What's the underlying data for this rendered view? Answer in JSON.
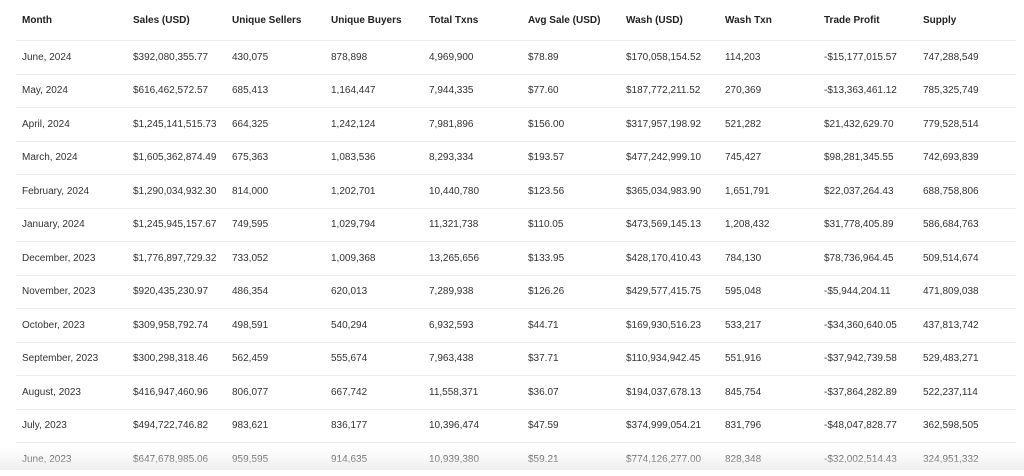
{
  "table": {
    "columns": [
      "Month",
      "Sales (USD)",
      "Unique Sellers",
      "Unique Buyers",
      "Total Txns",
      "Avg Sale (USD)",
      "Wash (USD)",
      "Wash Txn",
      "Trade Profit",
      "Supply"
    ],
    "rows": [
      [
        "June, 2024",
        "$392,080,355.77",
        "430,075",
        "878,898",
        "4,969,900",
        "$78.89",
        "$170,058,154.52",
        "114,203",
        "-$15,177,015.57",
        "747,288,549"
      ],
      [
        "May, 2024",
        "$616,462,572.57",
        "685,413",
        "1,164,447",
        "7,944,335",
        "$77.60",
        "$187,772,211.52",
        "270,369",
        "-$13,363,461.12",
        "785,325,749"
      ],
      [
        "April, 2024",
        "$1,245,141,515.73",
        "664,325",
        "1,242,124",
        "7,981,896",
        "$156.00",
        "$317,957,198.92",
        "521,282",
        "$21,432,629.70",
        "779,528,514"
      ],
      [
        "March, 2024",
        "$1,605,362,874.49",
        "675,363",
        "1,083,536",
        "8,293,334",
        "$193.57",
        "$477,242,999.10",
        "745,427",
        "$98,281,345.55",
        "742,693,839"
      ],
      [
        "February, 2024",
        "$1,290,034,932.30",
        "814,000",
        "1,202,701",
        "10,440,780",
        "$123.56",
        "$365,034,983.90",
        "1,651,791",
        "$22,037,264.43",
        "688,758,806"
      ],
      [
        "January, 2024",
        "$1,245,945,157.67",
        "749,595",
        "1,029,794",
        "11,321,738",
        "$110.05",
        "$473,569,145.13",
        "1,208,432",
        "$31,778,405.89",
        "586,684,763"
      ],
      [
        "December, 2023",
        "$1,776,897,729.32",
        "733,052",
        "1,009,368",
        "13,265,656",
        "$133.95",
        "$428,170,410.43",
        "784,130",
        "$78,736,964.45",
        "509,514,674"
      ],
      [
        "November, 2023",
        "$920,435,230.97",
        "486,354",
        "620,013",
        "7,289,938",
        "$126.26",
        "$429,577,415.75",
        "595,048",
        "-$5,944,204.11",
        "471,809,038"
      ],
      [
        "October, 2023",
        "$309,958,792.74",
        "498,591",
        "540,294",
        "6,932,593",
        "$44.71",
        "$169,930,516.23",
        "533,217",
        "-$34,360,640.05",
        "437,813,742"
      ],
      [
        "September, 2023",
        "$300,298,318.46",
        "562,459",
        "555,674",
        "7,963,438",
        "$37.71",
        "$110,934,942.45",
        "551,916",
        "-$37,942,739.58",
        "529,483,271"
      ],
      [
        "August, 2023",
        "$416,947,460.96",
        "806,077",
        "667,742",
        "11,558,371",
        "$36.07",
        "$194,037,678.13",
        "845,754",
        "-$37,864,282.89",
        "522,237,114"
      ],
      [
        "July, 2023",
        "$494,722,746.82",
        "983,621",
        "836,177",
        "10,396,474",
        "$47.59",
        "$374,999,054.21",
        "831,796",
        "-$48,047,828.77",
        "362,598,505"
      ],
      [
        "June, 2023",
        "$647,678,985.06",
        "959,595",
        "914,635",
        "10,939,380",
        "$59.21",
        "$774,126,277.00",
        "828,348",
        "-$32,002,514.43",
        "324,951,332"
      ]
    ]
  }
}
